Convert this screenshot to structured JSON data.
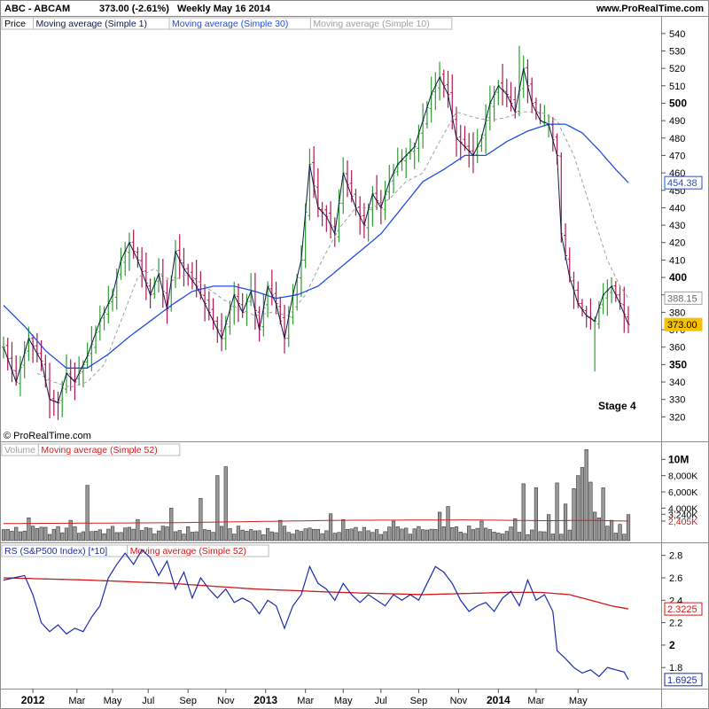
{
  "header": {
    "symbol": "ABC - ABCAM",
    "price": "373.00 (-2.61%)",
    "period": "Weekly  May 16 2014",
    "site": "www.ProRealTime.com"
  },
  "copyright": "© ProRealTime.com",
  "annotation": "Stage 4",
  "colors": {
    "up_bar": "#2e9e2e",
    "down_bar": "#b0174f",
    "ma1": "#0b1a4a",
    "ma30": "#1f4fe0",
    "ma10": "#a0a0a0",
    "volume_bar": "#9a9a9a",
    "volume_ma": "#d02020",
    "rs_line": "#1a2ea8",
    "rs_ma": "#d01818",
    "last_price_badge": "#f5c200"
  },
  "chart_data": [
    {
      "type": "bar",
      "panel": "price",
      "legend": [
        {
          "name": "Price",
          "color": "#000000"
        },
        {
          "name": "Moving average (Simple 1)",
          "color": "#0b1a4a"
        },
        {
          "name": "Moving average (Simple 30)",
          "color": "#1f4fe0"
        },
        {
          "name": "Moving average (Simple 10)",
          "color": "#a0a0a0"
        }
      ],
      "ylim": [
        310,
        545
      ],
      "y_ticks": [
        320,
        330,
        340,
        350,
        360,
        370,
        380,
        390,
        400,
        410,
        420,
        430,
        440,
        450,
        460,
        470,
        480,
        490,
        500,
        510,
        520,
        530,
        540
      ],
      "y_ticks_bold": [
        350,
        400,
        500
      ],
      "x_labels": [
        "2012",
        "Mar",
        "May",
        "Jul",
        "Sep",
        "Nov",
        "2013",
        "Mar",
        "May",
        "Jul",
        "Sep",
        "Nov",
        "2014",
        "Mar",
        "May"
      ],
      "x_labels_bold": [
        "2012",
        "2013",
        "2014"
      ],
      "badges": [
        {
          "label": "454.38",
          "value": 454.38,
          "style": "ma30"
        },
        {
          "label": "388.15",
          "value": 388.15,
          "style": "ma10"
        },
        {
          "label": "373.00",
          "value": 373.0,
          "style": "last"
        }
      ],
      "close_anchors": [
        [
          0,
          360
        ],
        [
          3,
          340
        ],
        [
          6,
          365
        ],
        [
          9,
          352
        ],
        [
          11,
          330
        ],
        [
          13,
          328
        ],
        [
          15,
          345
        ],
        [
          17,
          340
        ],
        [
          20,
          355
        ],
        [
          23,
          375
        ],
        [
          26,
          390
        ],
        [
          28,
          410
        ],
        [
          30,
          420
        ],
        [
          32,
          410
        ],
        [
          35,
          390
        ],
        [
          37,
          402
        ],
        [
          39,
          382
        ],
        [
          41,
          415
        ],
        [
          43,
          405
        ],
        [
          46,
          395
        ],
        [
          49,
          380
        ],
        [
          52,
          365
        ],
        [
          55,
          390
        ],
        [
          57,
          380
        ],
        [
          59,
          392
        ],
        [
          61,
          370
        ],
        [
          63,
          395
        ],
        [
          65,
          385
        ],
        [
          67,
          365
        ],
        [
          69,
          390
        ],
        [
          71,
          410
        ],
        [
          73,
          465
        ],
        [
          75,
          440
        ],
        [
          77,
          435
        ],
        [
          79,
          425
        ],
        [
          81,
          460
        ],
        [
          84,
          440
        ],
        [
          86,
          430
        ],
        [
          88,
          448
        ],
        [
          90,
          440
        ],
        [
          92,
          455
        ],
        [
          94,
          465
        ],
        [
          96,
          470
        ],
        [
          98,
          475
        ],
        [
          100,
          490
        ],
        [
          102,
          505
        ],
        [
          104,
          515
        ],
        [
          106,
          505
        ],
        [
          108,
          480
        ],
        [
          110,
          475
        ],
        [
          112,
          470
        ],
        [
          114,
          480
        ],
        [
          116,
          500
        ],
        [
          118,
          510
        ],
        [
          120,
          505
        ],
        [
          122,
          495
        ],
        [
          124,
          520
        ],
        [
          126,
          500
        ],
        [
          128,
          490
        ],
        [
          130,
          488
        ],
        [
          132,
          470
        ],
        [
          133,
          425
        ],
        [
          135,
          400
        ],
        [
          137,
          385
        ],
        [
          139,
          378
        ],
        [
          141,
          375
        ],
        [
          143,
          390
        ],
        [
          145,
          395
        ],
        [
          147,
          385
        ],
        [
          149,
          373
        ]
      ],
      "ma30_anchors": [
        [
          0,
          384
        ],
        [
          5,
          372
        ],
        [
          10,
          358
        ],
        [
          15,
          348
        ],
        [
          20,
          348
        ],
        [
          25,
          356
        ],
        [
          30,
          366
        ],
        [
          35,
          375
        ],
        [
          40,
          384
        ],
        [
          45,
          392
        ],
        [
          50,
          395
        ],
        [
          55,
          395
        ],
        [
          60,
          392
        ],
        [
          65,
          388
        ],
        [
          70,
          390
        ],
        [
          75,
          395
        ],
        [
          80,
          405
        ],
        [
          85,
          415
        ],
        [
          90,
          425
        ],
        [
          95,
          440
        ],
        [
          100,
          455
        ],
        [
          105,
          462
        ],
        [
          110,
          470
        ],
        [
          115,
          470
        ],
        [
          120,
          478
        ],
        [
          125,
          484
        ],
        [
          130,
          488
        ],
        [
          134,
          488
        ],
        [
          138,
          483
        ],
        [
          142,
          473
        ],
        [
          146,
          462
        ],
        [
          149,
          454.38
        ]
      ],
      "ma10_anchors": [
        [
          8,
          345
        ],
        [
          12,
          340
        ],
        [
          16,
          337
        ],
        [
          20,
          340
        ],
        [
          24,
          350
        ],
        [
          28,
          375
        ],
        [
          32,
          400
        ],
        [
          36,
          405
        ],
        [
          40,
          398
        ],
        [
          44,
          402
        ],
        [
          48,
          395
        ],
        [
          52,
          388
        ],
        [
          56,
          382
        ],
        [
          60,
          378
        ],
        [
          64,
          380
        ],
        [
          68,
          378
        ],
        [
          72,
          390
        ],
        [
          76,
          410
        ],
        [
          80,
          428
        ],
        [
          84,
          440
        ],
        [
          88,
          440
        ],
        [
          92,
          445
        ],
        [
          96,
          455
        ],
        [
          100,
          460
        ],
        [
          104,
          478
        ],
        [
          108,
          495
        ],
        [
          112,
          492
        ],
        [
          116,
          490
        ],
        [
          120,
          492
        ],
        [
          124,
          495
        ],
        [
          128,
          495
        ],
        [
          132,
          490
        ],
        [
          136,
          470
        ],
        [
          140,
          440
        ],
        [
          144,
          410
        ],
        [
          147,
          395
        ],
        [
          149,
          388.15
        ]
      ]
    },
    {
      "type": "bar",
      "panel": "volume",
      "legend": [
        {
          "name": "Volume",
          "color": "#a0a0a0"
        },
        {
          "name": "Moving average (Simple 52)",
          "color": "#d02020"
        }
      ],
      "ylim": [
        0,
        12000000
      ],
      "y_ticks": [
        {
          "value": 2405000,
          "label": "2,405K"
        },
        {
          "value": 3240000,
          "label": "3,240K"
        },
        {
          "value": 4000000,
          "label": "4,000K"
        },
        {
          "value": 6000000,
          "label": "6,000K"
        },
        {
          "value": 8000000,
          "label": "8,000K"
        },
        {
          "value": 10000000,
          "label": "10M"
        }
      ],
      "base_volume": 1200000,
      "spikes": [
        [
          6,
          2800000
        ],
        [
          16,
          2500000
        ],
        [
          20,
          6800000
        ],
        [
          32,
          2600000
        ],
        [
          40,
          4000000
        ],
        [
          47,
          5200000
        ],
        [
          51,
          8000000
        ],
        [
          53,
          9100000
        ],
        [
          66,
          2500000
        ],
        [
          78,
          3300000
        ],
        [
          81,
          2600000
        ],
        [
          93,
          2400000
        ],
        [
          104,
          3500000
        ],
        [
          106,
          4200000
        ],
        [
          114,
          2400000
        ],
        [
          122,
          2700000
        ],
        [
          124,
          7000000
        ],
        [
          127,
          6500000
        ],
        [
          130,
          3200000
        ],
        [
          132,
          7100000
        ],
        [
          134,
          4500000
        ],
        [
          136,
          6400000
        ],
        [
          137,
          8000000
        ],
        [
          138,
          9000000
        ],
        [
          139,
          11200000
        ],
        [
          140,
          7200000
        ],
        [
          141,
          3500000
        ],
        [
          142,
          2800000
        ],
        [
          143,
          6500000
        ],
        [
          145,
          2500000
        ],
        [
          147,
          2000000
        ],
        [
          149,
          3200000
        ]
      ],
      "ma52_anchors": [
        [
          0,
          2100000
        ],
        [
          40,
          2200000
        ],
        [
          80,
          2500000
        ],
        [
          110,
          2550000
        ],
        [
          130,
          2450000
        ],
        [
          140,
          2500000
        ],
        [
          149,
          2405000
        ]
      ]
    },
    {
      "type": "line",
      "panel": "rs",
      "legend": [
        {
          "name": "RS (S&P500 Index) [*10]",
          "color": "#1a2ea8"
        },
        {
          "name": "Moving average (Simple 52)",
          "color": "#d01818"
        }
      ],
      "ylim": [
        1.62,
        2.9
      ],
      "y_ticks": [
        1.8,
        2,
        2.2,
        2.4,
        2.6,
        2.8
      ],
      "y_ticks_bold": [
        2
      ],
      "badges": [
        {
          "label": "2.3225",
          "value": 2.3225,
          "style": "rs_ma"
        },
        {
          "label": "1.6925",
          "value": 1.6925,
          "style": "rs"
        }
      ],
      "rs_anchors": [
        [
          0,
          2.58
        ],
        [
          5,
          2.62
        ],
        [
          7,
          2.45
        ],
        [
          9,
          2.2
        ],
        [
          11,
          2.12
        ],
        [
          13,
          2.18
        ],
        [
          15,
          2.1
        ],
        [
          17,
          2.15
        ],
        [
          19,
          2.12
        ],
        [
          21,
          2.25
        ],
        [
          23,
          2.35
        ],
        [
          25,
          2.6
        ],
        [
          27,
          2.72
        ],
        [
          29,
          2.82
        ],
        [
          31,
          2.72
        ],
        [
          33,
          2.85
        ],
        [
          35,
          2.78
        ],
        [
          37,
          2.62
        ],
        [
          39,
          2.75
        ],
        [
          41,
          2.5
        ],
        [
          43,
          2.65
        ],
        [
          45,
          2.42
        ],
        [
          47,
          2.6
        ],
        [
          49,
          2.5
        ],
        [
          51,
          2.42
        ],
        [
          53,
          2.5
        ],
        [
          55,
          2.38
        ],
        [
          57,
          2.42
        ],
        [
          59,
          2.38
        ],
        [
          61,
          2.28
        ],
        [
          63,
          2.4
        ],
        [
          65,
          2.35
        ],
        [
          67,
          2.15
        ],
        [
          69,
          2.35
        ],
        [
          71,
          2.45
        ],
        [
          73,
          2.7
        ],
        [
          75,
          2.55
        ],
        [
          77,
          2.5
        ],
        [
          79,
          2.4
        ],
        [
          81,
          2.55
        ],
        [
          83,
          2.45
        ],
        [
          85,
          2.38
        ],
        [
          87,
          2.45
        ],
        [
          89,
          2.4
        ],
        [
          91,
          2.35
        ],
        [
          93,
          2.45
        ],
        [
          95,
          2.4
        ],
        [
          97,
          2.45
        ],
        [
          99,
          2.4
        ],
        [
          101,
          2.55
        ],
        [
          103,
          2.7
        ],
        [
          105,
          2.65
        ],
        [
          107,
          2.55
        ],
        [
          109,
          2.4
        ],
        [
          111,
          2.3
        ],
        [
          113,
          2.35
        ],
        [
          115,
          2.38
        ],
        [
          117,
          2.3
        ],
        [
          119,
          2.42
        ],
        [
          121,
          2.48
        ],
        [
          123,
          2.35
        ],
        [
          125,
          2.58
        ],
        [
          127,
          2.4
        ],
        [
          129,
          2.45
        ],
        [
          131,
          2.3
        ],
        [
          132,
          1.95
        ],
        [
          134,
          1.88
        ],
        [
          136,
          1.8
        ],
        [
          138,
          1.75
        ],
        [
          140,
          1.78
        ],
        [
          142,
          1.72
        ],
        [
          144,
          1.8
        ],
        [
          146,
          1.78
        ],
        [
          148,
          1.76
        ],
        [
          149,
          1.6925
        ]
      ],
      "ma52_anchors": [
        [
          0,
          2.6
        ],
        [
          20,
          2.58
        ],
        [
          40,
          2.55
        ],
        [
          60,
          2.5
        ],
        [
          80,
          2.47
        ],
        [
          100,
          2.45
        ],
        [
          120,
          2.47
        ],
        [
          128,
          2.47
        ],
        [
          135,
          2.45
        ],
        [
          140,
          2.4
        ],
        [
          145,
          2.35
        ],
        [
          149,
          2.3225
        ]
      ]
    }
  ]
}
